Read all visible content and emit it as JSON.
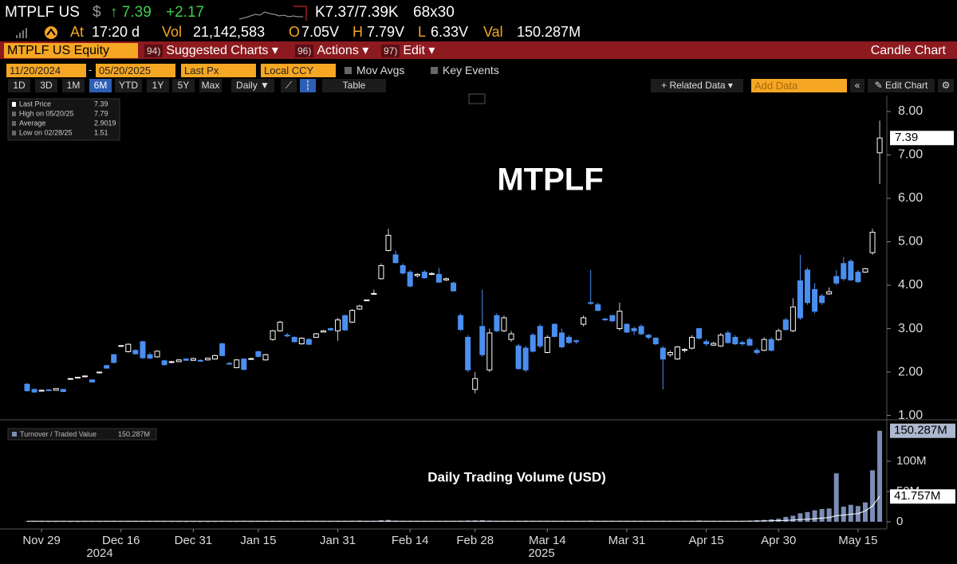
{
  "header": {
    "ticker": "MTPLF US",
    "currency": "$",
    "price": "↑ 7.39",
    "change": "+2.17",
    "quote": "K7.37/7.39K",
    "size": "68x30",
    "time_label": "At",
    "time": "17:20 d",
    "vol_label": "Vol",
    "vol": "21,142,583",
    "open_label": "O",
    "open": "7.05V",
    "high_label": "H",
    "high": "7.79V",
    "low_label": "L",
    "low": "6.33V",
    "val_label": "Val",
    "val": "150.287M"
  },
  "menu": {
    "security": "MTPLF US Equity",
    "items": [
      {
        "num": "94)",
        "label": "Suggested Charts ▾"
      },
      {
        "num": "96)",
        "label": "Actions ▾"
      },
      {
        "num": "97)",
        "label": "Edit ▾"
      }
    ],
    "chart_type": "Candle Chart"
  },
  "toolbar": {
    "start": "11/20/2024",
    "separator": "-",
    "end": "05/20/2025",
    "field": "Last Px",
    "currency": "Local CCY",
    "options": [
      "Mov Avgs",
      "Key Events"
    ],
    "periods": [
      "1D",
      "3D",
      "1M",
      "6M",
      "YTD",
      "1Y",
      "5Y",
      "Max"
    ],
    "selected_period": 3,
    "frequency": "Daily ▼",
    "table": "Table",
    "related": "+ Related Data ▾",
    "add_data": "Add Data",
    "collapse": "«",
    "edit_chart": "✎ Edit Chart",
    "settings": "⚙"
  },
  "chart_data": [
    {
      "type": "candlestick",
      "title": "MTPLF",
      "legend": [
        {
          "label": "Last Price",
          "value": "7.39"
        },
        {
          "label": "High on 05/20/25",
          "value": "7.79"
        },
        {
          "label": "Average",
          "value": "2.9019"
        },
        {
          "label": "Low on 02/28/25",
          "value": "1.51"
        }
      ],
      "categories": [
        null,
        null,
        "Nov 29",
        null,
        null,
        null,
        null,
        null,
        null,
        null,
        null,
        null,
        null,
        "Dec 16",
        null,
        null,
        null,
        null,
        null,
        null,
        null,
        null,
        null,
        "Dec 31",
        null,
        null,
        null,
        null,
        null,
        null,
        null,
        null,
        "Jan 15",
        null,
        null,
        null,
        null,
        null,
        null,
        null,
        null,
        null,
        null,
        "Jan 31",
        null,
        null,
        null,
        null,
        null,
        null,
        null,
        null,
        null,
        "Feb 14",
        null,
        null,
        null,
        null,
        null,
        null,
        null,
        null,
        "Feb 28",
        null,
        null,
        null,
        null,
        null,
        null,
        null,
        null,
        null,
        "Mar 14",
        null,
        null,
        null,
        null,
        null,
        null,
        null,
        null,
        null,
        null,
        "Mar 31",
        null,
        null,
        null,
        null,
        null,
        null,
        null,
        null,
        null,
        null,
        "Apr 15",
        null,
        null,
        null,
        null,
        null,
        null,
        null,
        null,
        null,
        "Apr 30",
        null,
        null,
        null,
        null,
        null,
        null,
        null,
        null,
        null,
        null,
        "May 15",
        null,
        null,
        null
      ],
      "years": [
        "2024",
        "2025"
      ],
      "open": [
        1.72,
        1.6,
        1.56,
        1.59,
        1.58,
        1.6,
        1.84,
        1.87,
        1.9,
        1.82,
        2.0,
        2.15,
        2.4,
        2.6,
        2.47,
        2.5,
        2.7,
        2.4,
        2.35,
        2.26,
        2.22,
        2.24,
        2.3,
        2.27,
        2.27,
        2.28,
        2.3,
        2.65,
        2.2,
        2.1,
        2.3,
        2.3,
        2.47,
        2.28,
        2.75,
        2.95,
        2.85,
        2.8,
        2.65,
        2.75,
        2.8,
        2.92,
        3.0,
        2.95,
        3.3,
        3.15,
        3.45,
        3.65,
        3.8,
        4.15,
        4.8,
        4.7,
        4.45,
        4.3,
        4.22,
        4.3,
        4.25,
        4.25,
        4.12,
        4.05,
        3.3,
        2.8,
        1.6,
        3.05,
        2.05,
        3.3,
        2.95,
        2.75,
        2.6,
        2.55,
        2.85,
        3.05,
        2.45,
        3.1,
        2.9,
        2.8,
        2.72,
        3.1,
        3.6,
        3.55,
        3.22,
        3.3,
        3.0,
        3.1,
        3.0,
        3.05,
        2.85,
        2.78,
        2.55,
        2.4,
        2.3,
        2.5,
        2.55,
        3.0,
        2.7,
        2.62,
        2.6,
        2.9,
        2.8,
        2.68,
        2.75,
        2.5,
        2.5,
        2.75,
        2.75,
        3.2,
        2.95,
        4.1,
        4.35,
        3.9,
        3.75,
        3.8,
        4.2,
        4.5,
        4.55,
        4.3,
        4.3,
        4.75,
        7.05
      ],
      "high": [
        1.75,
        1.62,
        1.6,
        1.61,
        1.63,
        1.61,
        1.86,
        1.89,
        1.92,
        1.83,
        2.01,
        2.16,
        2.42,
        2.62,
        2.66,
        2.52,
        2.72,
        2.45,
        2.5,
        2.28,
        2.26,
        2.3,
        2.32,
        2.33,
        2.29,
        2.33,
        2.4,
        2.68,
        2.23,
        2.3,
        2.32,
        2.33,
        2.49,
        2.42,
        2.97,
        3.18,
        2.9,
        2.82,
        2.8,
        2.78,
        2.9,
        2.97,
        3.02,
        3.25,
        3.32,
        3.45,
        3.55,
        3.67,
        3.9,
        4.5,
        5.3,
        4.8,
        4.5,
        4.35,
        4.28,
        4.35,
        4.3,
        4.4,
        4.18,
        4.08,
        3.35,
        2.85,
        2.0,
        3.9,
        3.0,
        3.35,
        3.3,
        2.95,
        2.65,
        2.6,
        2.9,
        3.1,
        2.85,
        3.12,
        3.0,
        2.85,
        2.75,
        3.3,
        4.35,
        3.6,
        3.25,
        3.32,
        3.6,
        3.12,
        3.05,
        3.1,
        2.88,
        2.8,
        2.6,
        2.5,
        2.6,
        2.55,
        2.85,
        3.02,
        2.75,
        2.7,
        2.9,
        2.95,
        2.85,
        2.72,
        2.8,
        2.55,
        2.8,
        2.8,
        3.0,
        3.25,
        3.7,
        4.7,
        4.4,
        4.05,
        3.8,
        3.95,
        4.35,
        4.65,
        4.6,
        4.35,
        4.4,
        5.3,
        7.79
      ],
      "low": [
        1.55,
        1.52,
        1.55,
        1.57,
        1.57,
        1.54,
        1.83,
        1.86,
        1.89,
        1.76,
        1.99,
        2.08,
        2.2,
        2.59,
        2.45,
        2.4,
        2.3,
        2.3,
        2.33,
        2.15,
        2.2,
        2.23,
        2.26,
        2.26,
        2.24,
        2.27,
        2.29,
        2.36,
        2.17,
        2.09,
        2.04,
        2.29,
        2.34,
        2.26,
        2.72,
        2.93,
        2.8,
        2.68,
        2.63,
        2.62,
        2.79,
        2.91,
        2.95,
        2.72,
        2.95,
        3.13,
        3.43,
        3.63,
        3.78,
        4.13,
        4.78,
        4.5,
        4.25,
        3.95,
        4.18,
        4.15,
        4.23,
        4.05,
        4.1,
        3.85,
        2.95,
        2.0,
        1.51,
        2.35,
        2.0,
        2.92,
        2.92,
        2.7,
        2.05,
        2.0,
        2.45,
        2.55,
        2.43,
        2.8,
        2.55,
        2.65,
        2.65,
        3.05,
        3.55,
        3.4,
        3.18,
        3.15,
        2.95,
        2.9,
        2.85,
        2.85,
        2.75,
        2.62,
        1.6,
        2.35,
        2.28,
        2.45,
        2.52,
        2.75,
        2.6,
        2.6,
        2.58,
        2.65,
        2.62,
        2.6,
        2.6,
        2.4,
        2.48,
        2.48,
        2.72,
        2.95,
        2.92,
        3.2,
        3.55,
        3.35,
        3.55,
        3.78,
        4.0,
        4.1,
        4.1,
        4.05,
        4.28,
        4.7,
        6.33
      ],
      "close": [
        1.57,
        1.54,
        1.58,
        1.58,
        1.62,
        1.55,
        1.85,
        1.88,
        1.91,
        1.77,
        2.0,
        2.09,
        2.22,
        2.61,
        2.64,
        2.42,
        2.33,
        2.32,
        2.48,
        2.17,
        2.24,
        2.28,
        2.27,
        2.31,
        2.25,
        2.32,
        2.38,
        2.38,
        2.19,
        2.28,
        2.06,
        2.31,
        2.36,
        2.4,
        2.95,
        3.15,
        2.84,
        2.7,
        2.78,
        2.64,
        2.88,
        2.95,
        2.97,
        3.2,
        2.97,
        3.42,
        3.52,
        3.66,
        3.81,
        4.45,
        5.15,
        4.52,
        4.28,
        3.98,
        4.25,
        4.17,
        4.27,
        4.07,
        4.15,
        3.87,
        2.98,
        2.05,
        1.85,
        2.4,
        2.9,
        2.95,
        3.25,
        2.88,
        2.08,
        2.05,
        2.48,
        2.6,
        2.8,
        2.82,
        2.58,
        2.68,
        2.7,
        3.25,
        3.58,
        3.42,
        3.21,
        3.18,
        3.4,
        2.92,
        2.95,
        2.88,
        2.8,
        2.65,
        2.3,
        2.45,
        2.58,
        2.52,
        2.8,
        2.78,
        2.65,
        2.66,
        2.85,
        2.68,
        2.65,
        2.65,
        2.62,
        2.45,
        2.75,
        2.5,
        2.95,
        2.98,
        3.5,
        3.25,
        3.6,
        3.4,
        3.6,
        3.85,
        4.05,
        4.15,
        4.12,
        4.08,
        4.38,
        5.22,
        7.39
      ],
      "up_color": "#ffffff",
      "down_color": "#4a8ff0",
      "ylim": [
        0.9,
        8.33
      ],
      "yticks": [
        {
          "value": 1,
          "label": "1.00"
        },
        {
          "value": 2,
          "label": "2.00"
        },
        {
          "value": 3,
          "label": "3.00"
        },
        {
          "value": 4,
          "label": "4.00"
        },
        {
          "value": 5,
          "label": "5.00"
        },
        {
          "value": 6,
          "label": "6.00"
        },
        {
          "value": 7,
          "label": "7.00"
        },
        {
          "value": 8,
          "label": "8.00"
        }
      ]
    },
    {
      "type": "bar",
      "title": "Daily Trading Volume (USD)",
      "legend": {
        "label": "Turnover / Traded Value",
        "value": "150.287M"
      },
      "series": [
        {
          "type": "bar",
          "color": "#7b8db5",
          "values": [
            0.8,
            0.5,
            0.4,
            0.3,
            0.3,
            0.4,
            0.2,
            0.2,
            0.3,
            0.4,
            0.3,
            0.6,
            1.2,
            0.4,
            0.8,
            0.5,
            1.0,
            0.6,
            0.5,
            0.4,
            0.3,
            0.3,
            0.2,
            0.3,
            0.2,
            0.2,
            0.3,
            0.8,
            0.4,
            0.3,
            0.6,
            0.3,
            0.7,
            0.5,
            1.2,
            1.5,
            0.8,
            0.7,
            0.5,
            0.6,
            0.5,
            0.4,
            0.4,
            1.0,
            1.2,
            1.5,
            1.8,
            0.8,
            0.9,
            2.5,
            3.0,
            1.8,
            1.2,
            1.0,
            0.6,
            0.7,
            0.5,
            0.8,
            0.5,
            0.9,
            1.5,
            2.0,
            2.2,
            2.5,
            1.8,
            1.2,
            1.0,
            0.9,
            1.3,
            1.5,
            1.1,
            1.2,
            0.9,
            0.8,
            0.7,
            0.6,
            0.5,
            1.0,
            1.8,
            1.0,
            0.7,
            0.6,
            0.9,
            0.8,
            0.6,
            0.7,
            0.5,
            0.6,
            1.4,
            0.8,
            0.7,
            0.9,
            1.1,
            2.0,
            0.8,
            0.9,
            1.0,
            1.2,
            0.9,
            1.0,
            1.5,
            2.5,
            3.0,
            4.0,
            5.0,
            8.0,
            10.0,
            14.0,
            16.0,
            19.0,
            21.0,
            22.0,
            80.0,
            25.0,
            28.0,
            26.0,
            32.0,
            85.0,
            150.287
          ],
          "value_labels": [
            null,
            null,
            null,
            null,
            null,
            null,
            null,
            null,
            null,
            null,
            null,
            null,
            null,
            null,
            null,
            null,
            null,
            null,
            null,
            null,
            null,
            null,
            null,
            null,
            null,
            null,
            null,
            null,
            null,
            null,
            null,
            null,
            null,
            null,
            null,
            null,
            null,
            null,
            null,
            null,
            null,
            null,
            null,
            null,
            null,
            null,
            null,
            null,
            null,
            null,
            null,
            null,
            null,
            null,
            null,
            null,
            null,
            null,
            null,
            null,
            null,
            null,
            null,
            null,
            null,
            null,
            null,
            null,
            null,
            null,
            null,
            null,
            null,
            null,
            null,
            null,
            null,
            null,
            null,
            null,
            null,
            null,
            null,
            null,
            null,
            null,
            null,
            null,
            null,
            null,
            null,
            null,
            null,
            null,
            null,
            null,
            null,
            null,
            null,
            null,
            null,
            null,
            null,
            null,
            null,
            null,
            null,
            null,
            null,
            null,
            null,
            null,
            null,
            null,
            null,
            null,
            null,
            null,
            "150.287M"
          ]
        },
        {
          "type": "line",
          "color": "#ffffff",
          "values": [
            1,
            1,
            1,
            1,
            1,
            1,
            1,
            1,
            1,
            1,
            1,
            1,
            1,
            1,
            1,
            1,
            1,
            1,
            1,
            1,
            1,
            1,
            1,
            1,
            1,
            1,
            1,
            1,
            1,
            1,
            1,
            1,
            1,
            1,
            1,
            1,
            1,
            1,
            1,
            1,
            1,
            1,
            1,
            1,
            1,
            1,
            1,
            1,
            1,
            1,
            1,
            1,
            1,
            1,
            1,
            1,
            1,
            1,
            1,
            1,
            1,
            1,
            1,
            1,
            1,
            1,
            1,
            1,
            1,
            1,
            1,
            1,
            1,
            1,
            1,
            1,
            1,
            1,
            1,
            1,
            1,
            1,
            1,
            1,
            1,
            1,
            1,
            1,
            1,
            1,
            1,
            1,
            1,
            1,
            1,
            1,
            1,
            1,
            1,
            1,
            1.1,
            1.2,
            1.4,
            1.6,
            1.9,
            2.3,
            2.8,
            3.5,
            4.2,
            5.0,
            6.0,
            7.0,
            10.0,
            11.0,
            12.5,
            13.5,
            18.0,
            26.0,
            41.757
          ],
          "value_labels": [
            null,
            null,
            null,
            null,
            null,
            null,
            null,
            null,
            null,
            null,
            null,
            null,
            null,
            null,
            null,
            null,
            null,
            null,
            null,
            null,
            null,
            null,
            null,
            null,
            null,
            null,
            null,
            null,
            null,
            null,
            null,
            null,
            null,
            null,
            null,
            null,
            null,
            null,
            null,
            null,
            null,
            null,
            null,
            null,
            null,
            null,
            null,
            null,
            null,
            null,
            null,
            null,
            null,
            null,
            null,
            null,
            null,
            null,
            null,
            null,
            null,
            null,
            null,
            null,
            null,
            null,
            null,
            null,
            null,
            null,
            null,
            null,
            null,
            null,
            null,
            null,
            null,
            null,
            null,
            null,
            null,
            null,
            null,
            null,
            null,
            null,
            null,
            null,
            null,
            null,
            null,
            null,
            null,
            null,
            null,
            null,
            null,
            null,
            null,
            null,
            null,
            null,
            null,
            null,
            null,
            null,
            null,
            null,
            null,
            null,
            null,
            null,
            null,
            null,
            null,
            null,
            null,
            null,
            "41.757M"
          ]
        }
      ],
      "ylim": [
        -6.6,
        160.5
      ],
      "yticks": [
        0,
        {
          "value": 50,
          "label": "50M"
        },
        {
          "value": 100,
          "label": "100M"
        }
      ]
    }
  ]
}
